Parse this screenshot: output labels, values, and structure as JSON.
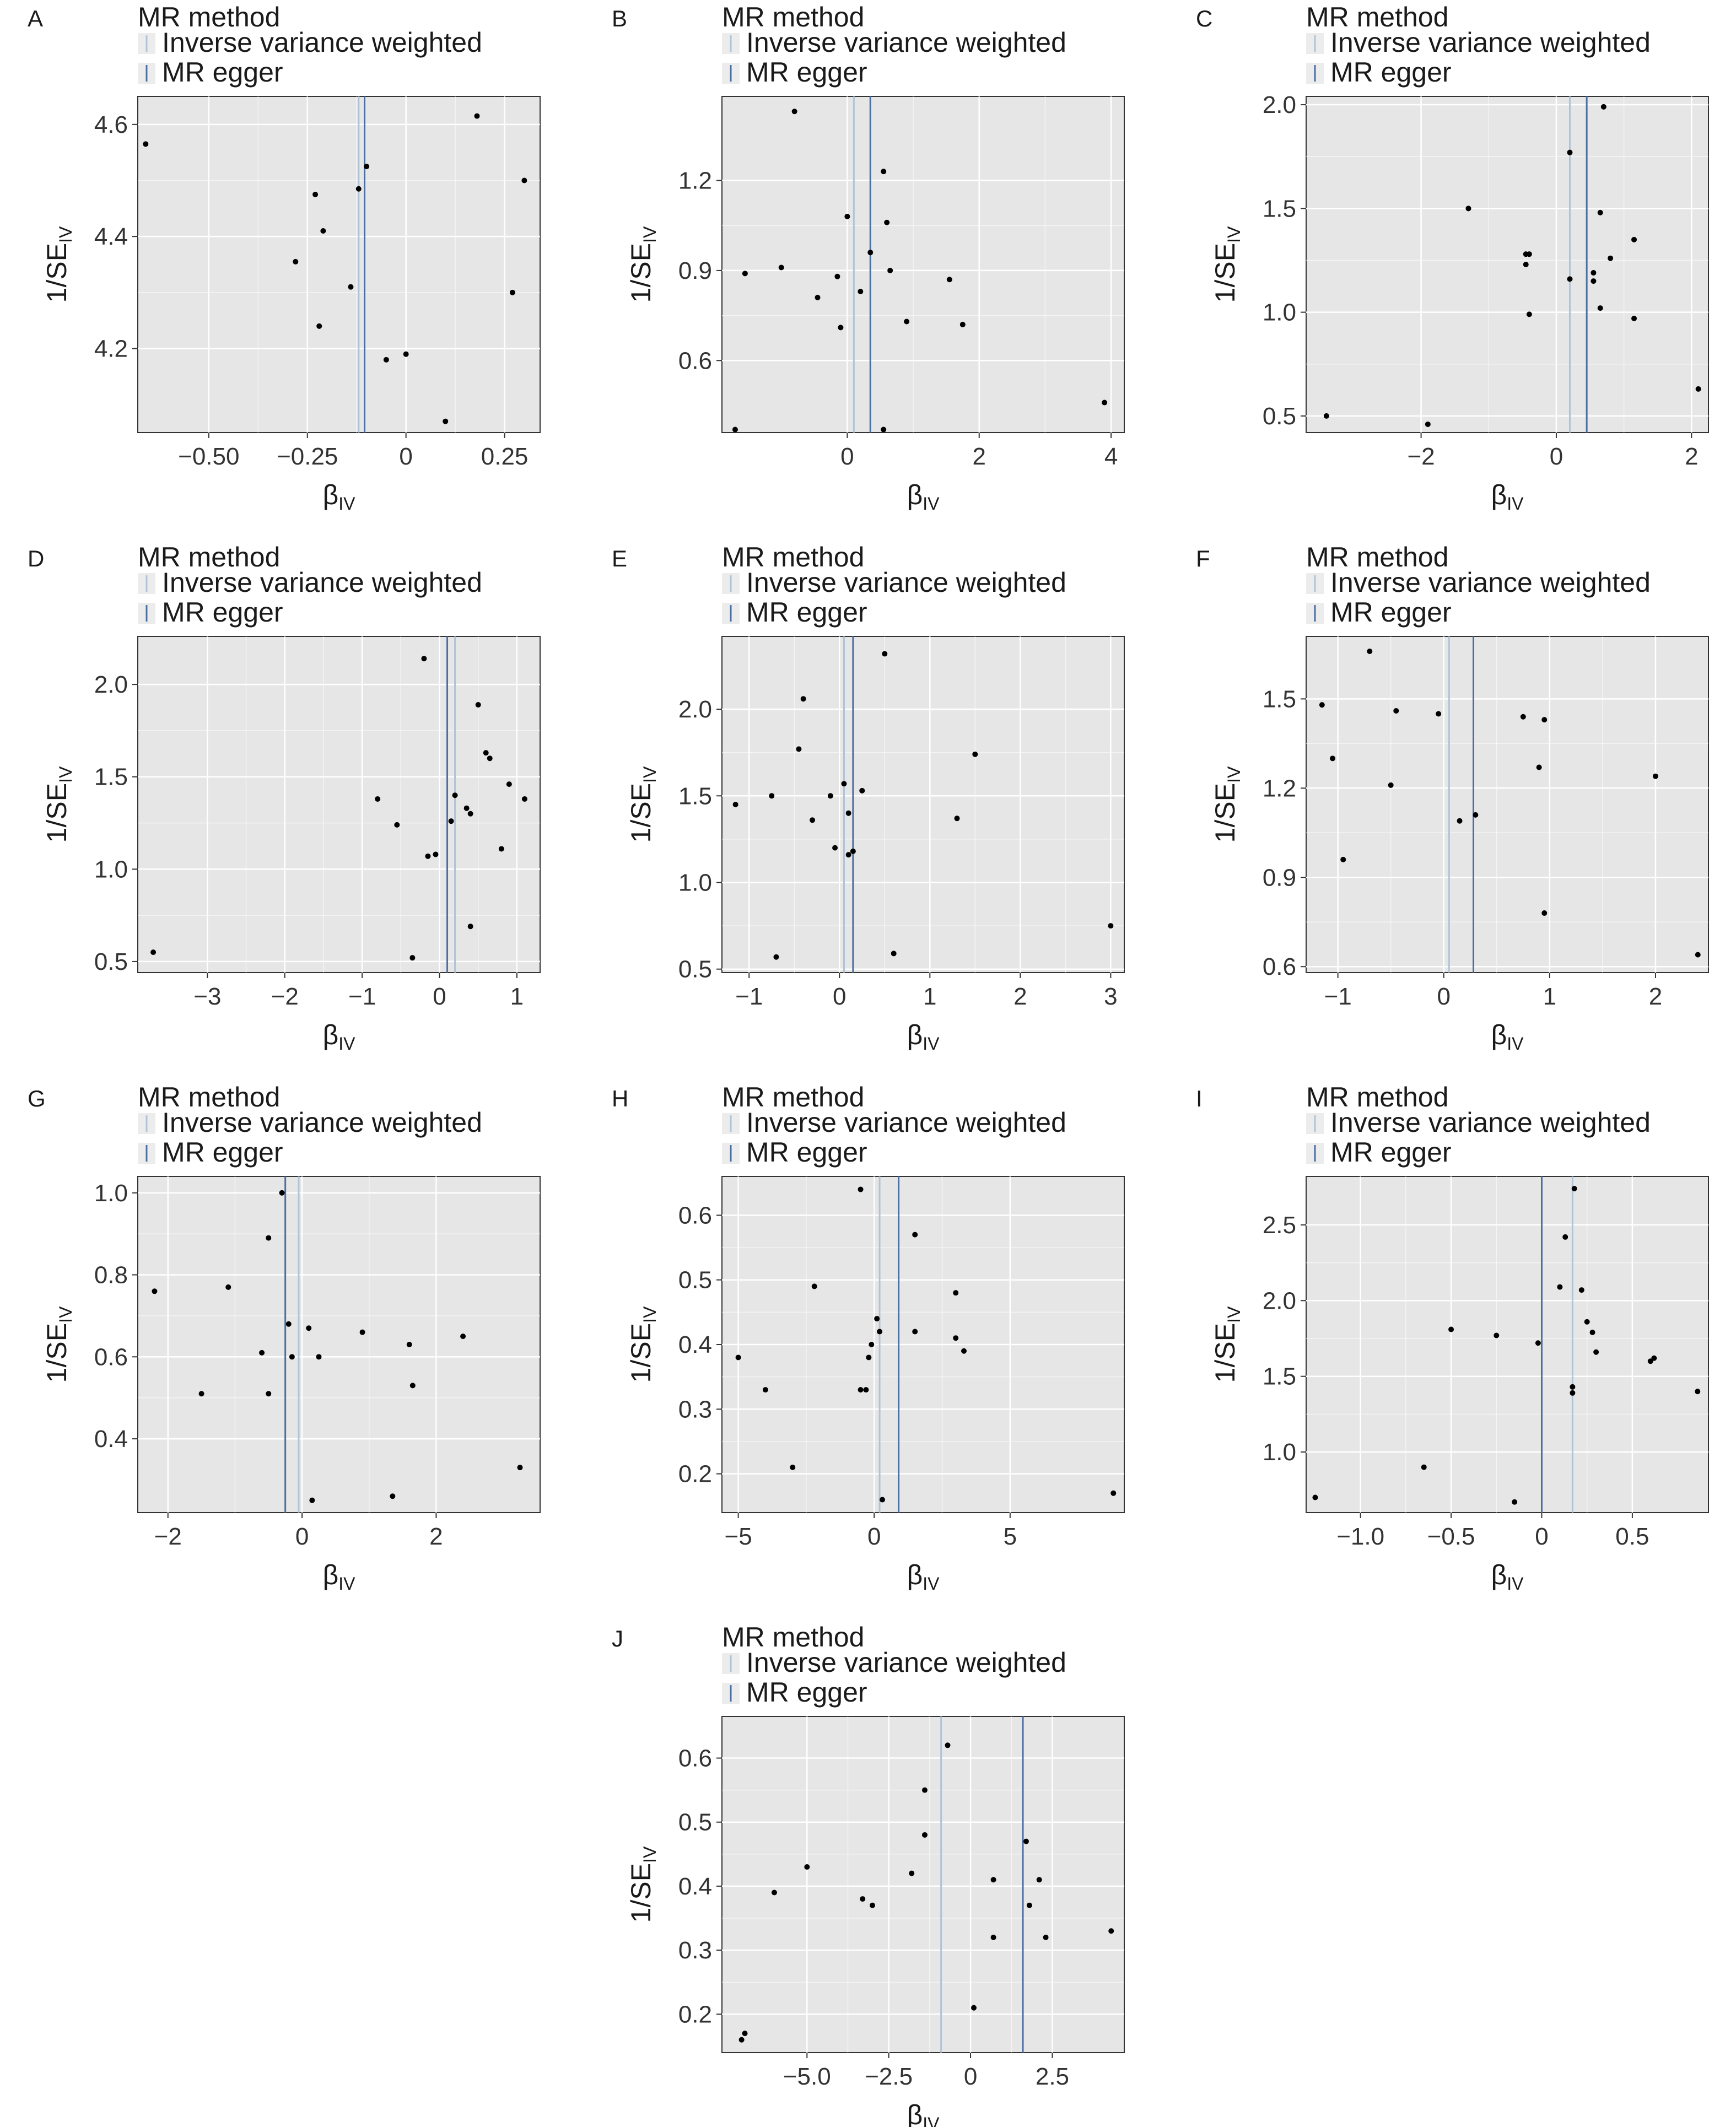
{
  "figure": {
    "legend_title": "MR method",
    "legend_items": [
      "Inverse variance weighted",
      "MR egger"
    ],
    "colors": {
      "panel_bg": "#e6e6e6",
      "grid": "#ffffff",
      "point": "#000000",
      "ivw_line": "#b0c4d8",
      "egger_line": "#4b6fa3",
      "axis_text": "#333333"
    }
  },
  "chart_data": [
    {
      "panel": "A",
      "type": "scatter",
      "xlabel": "β",
      "xlabel_sub": "IV",
      "ylabel": "1/SE",
      "ylabel_sub": "IV",
      "xlim": [
        -0.68,
        0.34
      ],
      "ylim": [
        4.05,
        4.65
      ],
      "xticks": [
        -0.5,
        -0.25,
        0,
        0.25
      ],
      "xtick_labels": [
        "−0.50",
        "−0.25",
        "0",
        "0.25"
      ],
      "yticks": [
        4.2,
        4.4,
        4.6
      ],
      "ytick_labels": [
        "4.2",
        "4.4",
        "4.6"
      ],
      "ivw": -0.12,
      "egger": -0.105,
      "points": [
        [
          -0.66,
          4.565
        ],
        [
          -0.23,
          4.475
        ],
        [
          -0.28,
          4.355
        ],
        [
          -0.21,
          4.41
        ],
        [
          -0.22,
          4.24
        ],
        [
          -0.14,
          4.31
        ],
        [
          -0.12,
          4.485
        ],
        [
          -0.1,
          4.525
        ],
        [
          -0.05,
          4.18
        ],
        [
          0.0,
          4.19
        ],
        [
          0.1,
          4.07
        ],
        [
          0.18,
          4.615
        ],
        [
          0.27,
          4.3
        ],
        [
          0.3,
          4.5
        ]
      ]
    },
    {
      "panel": "B",
      "type": "scatter",
      "xlabel": "β",
      "xlabel_sub": "IV",
      "ylabel": "1/SE",
      "ylabel_sub": "IV",
      "xlim": [
        -1.9,
        4.2
      ],
      "ylim": [
        0.36,
        1.48
      ],
      "xticks": [
        0,
        2,
        4
      ],
      "xtick_labels": [
        "0",
        "2",
        "4"
      ],
      "yticks": [
        0.6,
        0.9,
        1.2
      ],
      "ytick_labels": [
        "0.6",
        "0.9",
        "1.2"
      ],
      "ivw": 0.1,
      "egger": 0.35,
      "points": [
        [
          -1.7,
          0.37
        ],
        [
          -1.55,
          0.89
        ],
        [
          -1.0,
          0.91
        ],
        [
          -0.8,
          1.43
        ],
        [
          -0.45,
          0.81
        ],
        [
          -0.15,
          0.88
        ],
        [
          -0.1,
          0.71
        ],
        [
          0.0,
          1.08
        ],
        [
          0.2,
          0.83
        ],
        [
          0.35,
          0.96
        ],
        [
          0.55,
          0.37
        ],
        [
          0.55,
          1.23
        ],
        [
          0.6,
          1.06
        ],
        [
          0.65,
          0.9
        ],
        [
          0.9,
          0.73
        ],
        [
          1.55,
          0.87
        ],
        [
          1.75,
          0.72
        ],
        [
          3.9,
          0.46
        ]
      ]
    },
    {
      "panel": "C",
      "type": "scatter",
      "xlabel": "β",
      "xlabel_sub": "IV",
      "ylabel": "1/SE",
      "ylabel_sub": "IV",
      "xlim": [
        -3.7,
        2.25
      ],
      "ylim": [
        0.42,
        2.04
      ],
      "xticks": [
        -2,
        0,
        2
      ],
      "xtick_labels": [
        "−2",
        "0",
        "2"
      ],
      "yticks": [
        0.5,
        1.0,
        1.5,
        2.0
      ],
      "ytick_labels": [
        "0.5",
        "1.0",
        "1.5",
        "2.0"
      ],
      "ivw": 0.2,
      "egger": 0.45,
      "points": [
        [
          -3.4,
          0.5
        ],
        [
          -1.9,
          0.46
        ],
        [
          -1.3,
          1.5
        ],
        [
          -0.45,
          1.28
        ],
        [
          -0.45,
          1.23
        ],
        [
          -0.4,
          1.28
        ],
        [
          -0.4,
          0.99
        ],
        [
          0.2,
          1.77
        ],
        [
          0.2,
          1.16
        ],
        [
          0.55,
          1.19
        ],
        [
          0.55,
          1.15
        ],
        [
          0.65,
          1.02
        ],
        [
          0.65,
          1.48
        ],
        [
          0.7,
          1.99
        ],
        [
          0.8,
          1.26
        ],
        [
          1.15,
          0.97
        ],
        [
          1.15,
          1.35
        ],
        [
          2.1,
          0.63
        ]
      ]
    },
    {
      "panel": "D",
      "type": "scatter",
      "xlabel": "β",
      "xlabel_sub": "IV",
      "ylabel": "1/SE",
      "ylabel_sub": "IV",
      "xlim": [
        -3.9,
        1.3
      ],
      "ylim": [
        0.44,
        2.26
      ],
      "xticks": [
        -3,
        -2,
        -1,
        0,
        1
      ],
      "xtick_labels": [
        "−3",
        "−2",
        "−1",
        "0",
        "1"
      ],
      "yticks": [
        0.5,
        1.0,
        1.5,
        2.0
      ],
      "ytick_labels": [
        "0.5",
        "1.0",
        "1.5",
        "2.0"
      ],
      "ivw": 0.2,
      "egger": 0.1,
      "points": [
        [
          -3.7,
          0.55
        ],
        [
          -0.8,
          1.38
        ],
        [
          -0.55,
          1.24
        ],
        [
          -0.35,
          0.52
        ],
        [
          -0.2,
          2.14
        ],
        [
          -0.15,
          1.07
        ],
        [
          -0.05,
          1.08
        ],
        [
          0.15,
          1.26
        ],
        [
          0.2,
          1.4
        ],
        [
          0.35,
          1.33
        ],
        [
          0.4,
          1.3
        ],
        [
          0.4,
          0.69
        ],
        [
          0.5,
          1.89
        ],
        [
          0.6,
          1.63
        ],
        [
          0.65,
          1.6
        ],
        [
          0.8,
          1.11
        ],
        [
          0.9,
          1.46
        ],
        [
          1.1,
          1.38
        ]
      ]
    },
    {
      "panel": "E",
      "type": "scatter",
      "xlabel": "β",
      "xlabel_sub": "IV",
      "ylabel": "1/SE",
      "ylabel_sub": "IV",
      "xlim": [
        -1.3,
        3.15
      ],
      "ylim": [
        0.48,
        2.42
      ],
      "xticks": [
        -1,
        0,
        1,
        2,
        3
      ],
      "xtick_labels": [
        "−1",
        "0",
        "1",
        "2",
        "3"
      ],
      "yticks": [
        0.5,
        1.0,
        1.5,
        2.0
      ],
      "ytick_labels": [
        "0.5",
        "1.0",
        "1.5",
        "2.0"
      ],
      "ivw": 0.05,
      "egger": 0.15,
      "points": [
        [
          -1.15,
          1.45
        ],
        [
          -0.75,
          1.5
        ],
        [
          -0.7,
          0.57
        ],
        [
          -0.45,
          1.77
        ],
        [
          -0.4,
          2.06
        ],
        [
          -0.3,
          1.36
        ],
        [
          -0.1,
          1.5
        ],
        [
          -0.05,
          1.2
        ],
        [
          0.05,
          1.57
        ],
        [
          0.1,
          1.4
        ],
        [
          0.1,
          1.16
        ],
        [
          0.15,
          1.18
        ],
        [
          0.25,
          1.53
        ],
        [
          0.5,
          2.32
        ],
        [
          0.6,
          0.59
        ],
        [
          1.3,
          1.37
        ],
        [
          1.5,
          1.74
        ],
        [
          3.0,
          0.75
        ]
      ]
    },
    {
      "panel": "F",
      "type": "scatter",
      "xlabel": "β",
      "xlabel_sub": "IV",
      "ylabel": "1/SE",
      "ylabel_sub": "IV",
      "xlim": [
        -1.3,
        2.5
      ],
      "ylim": [
        0.58,
        1.71
      ],
      "xticks": [
        -1,
        0,
        1,
        2
      ],
      "xtick_labels": [
        "−1",
        "0",
        "1",
        "2"
      ],
      "yticks": [
        0.6,
        0.9,
        1.2,
        1.5
      ],
      "ytick_labels": [
        "0.6",
        "0.9",
        "1.2",
        "1.5"
      ],
      "ivw": 0.05,
      "egger": 0.28,
      "points": [
        [
          -1.15,
          1.48
        ],
        [
          -1.05,
          1.3
        ],
        [
          -0.95,
          0.96
        ],
        [
          -0.7,
          1.66
        ],
        [
          -0.5,
          1.21
        ],
        [
          -0.45,
          1.46
        ],
        [
          -0.05,
          1.45
        ],
        [
          0.15,
          1.09
        ],
        [
          0.3,
          1.11
        ],
        [
          0.75,
          1.44
        ],
        [
          0.9,
          1.27
        ],
        [
          0.95,
          0.78
        ],
        [
          0.95,
          1.43
        ],
        [
          2.0,
          1.24
        ],
        [
          2.4,
          0.64
        ]
      ]
    },
    {
      "panel": "G",
      "type": "scatter",
      "xlabel": "β",
      "xlabel_sub": "IV",
      "ylabel": "1/SE",
      "ylabel_sub": "IV",
      "xlim": [
        -2.45,
        3.55
      ],
      "ylim": [
        0.22,
        1.04
      ],
      "xticks": [
        -2,
        0,
        2
      ],
      "xtick_labels": [
        "−2",
        "0",
        "2"
      ],
      "yticks": [
        0.4,
        0.6,
        0.8,
        1.0
      ],
      "ytick_labels": [
        "0.4",
        "0.6",
        "0.8",
        "1.0"
      ],
      "ivw": -0.05,
      "egger": -0.25,
      "points": [
        [
          -2.2,
          0.76
        ],
        [
          -1.5,
          0.51
        ],
        [
          -1.1,
          0.77
        ],
        [
          -0.6,
          0.61
        ],
        [
          -0.5,
          0.89
        ],
        [
          -0.5,
          0.51
        ],
        [
          -0.3,
          1.0
        ],
        [
          -0.2,
          0.68
        ],
        [
          -0.15,
          0.6
        ],
        [
          0.1,
          0.67
        ],
        [
          0.15,
          0.25
        ],
        [
          0.25,
          0.6
        ],
        [
          0.9,
          0.66
        ],
        [
          1.35,
          0.26
        ],
        [
          1.6,
          0.63
        ],
        [
          1.65,
          0.53
        ],
        [
          2.4,
          0.65
        ],
        [
          3.25,
          0.33
        ]
      ]
    },
    {
      "panel": "H",
      "type": "scatter",
      "xlabel": "β",
      "xlabel_sub": "IV",
      "ylabel": "1/SE",
      "ylabel_sub": "IV",
      "xlim": [
        -5.6,
        9.2
      ],
      "ylim": [
        0.14,
        0.66
      ],
      "xticks": [
        -5,
        0,
        5
      ],
      "xtick_labels": [
        "−5",
        "0",
        "5"
      ],
      "yticks": [
        0.2,
        0.3,
        0.4,
        0.5,
        0.6
      ],
      "ytick_labels": [
        "0.2",
        "0.3",
        "0.4",
        "0.5",
        "0.6"
      ],
      "ivw": 0.2,
      "egger": 0.9,
      "points": [
        [
          -5.0,
          0.38
        ],
        [
          -4.0,
          0.33
        ],
        [
          -3.0,
          0.21
        ],
        [
          -2.2,
          0.49
        ],
        [
          -0.5,
          0.64
        ],
        [
          -0.5,
          0.33
        ],
        [
          -0.3,
          0.33
        ],
        [
          -0.2,
          0.38
        ],
        [
          -0.1,
          0.4
        ],
        [
          0.1,
          0.44
        ],
        [
          0.2,
          0.42
        ],
        [
          0.3,
          0.16
        ],
        [
          1.5,
          0.57
        ],
        [
          1.5,
          0.42
        ],
        [
          3.0,
          0.48
        ],
        [
          3.0,
          0.41
        ],
        [
          3.3,
          0.39
        ],
        [
          8.8,
          0.17
        ]
      ]
    },
    {
      "panel": "I",
      "type": "scatter",
      "xlabel": "β",
      "xlabel_sub": "IV",
      "ylabel": "1/SE",
      "ylabel_sub": "IV",
      "xlim": [
        -1.3,
        0.92
      ],
      "ylim": [
        0.6,
        2.82
      ],
      "xticks": [
        -1.0,
        -0.5,
        0,
        0.5
      ],
      "xtick_labels": [
        "−1.0",
        "−0.5",
        "0",
        "0.5"
      ],
      "yticks": [
        1.0,
        1.5,
        2.0,
        2.5
      ],
      "ytick_labels": [
        "1.0",
        "1.5",
        "2.0",
        "2.5"
      ],
      "ivw": 0.17,
      "egger": 0.0,
      "points": [
        [
          -1.25,
          0.7
        ],
        [
          -0.65,
          0.9
        ],
        [
          -0.5,
          1.81
        ],
        [
          -0.25,
          1.77
        ],
        [
          -0.15,
          0.67
        ],
        [
          -0.02,
          1.72
        ],
        [
          0.1,
          2.09
        ],
        [
          0.13,
          2.42
        ],
        [
          0.17,
          1.43
        ],
        [
          0.17,
          1.39
        ],
        [
          0.18,
          2.74
        ],
        [
          0.22,
          2.07
        ],
        [
          0.25,
          1.86
        ],
        [
          0.28,
          1.79
        ],
        [
          0.3,
          1.66
        ],
        [
          0.6,
          1.6
        ],
        [
          0.62,
          1.62
        ],
        [
          0.86,
          1.4
        ]
      ]
    },
    {
      "panel": "J",
      "type": "scatter",
      "xlabel": "β",
      "xlabel_sub": "IV",
      "ylabel": "1/SE",
      "ylabel_sub": "IV",
      "xlim": [
        -7.6,
        4.7
      ],
      "ylim": [
        0.14,
        0.665
      ],
      "xticks": [
        -5.0,
        -2.5,
        0,
        2.5
      ],
      "xtick_labels": [
        "−5.0",
        "−2.5",
        "0",
        "2.5"
      ],
      "yticks": [
        0.2,
        0.3,
        0.4,
        0.5,
        0.6
      ],
      "ytick_labels": [
        "0.2",
        "0.3",
        "0.4",
        "0.5",
        "0.6"
      ],
      "ivw": -0.9,
      "egger": 1.6,
      "points": [
        [
          -7.0,
          0.16
        ],
        [
          -6.9,
          0.17
        ],
        [
          -6.0,
          0.39
        ],
        [
          -5.0,
          0.43
        ],
        [
          -3.3,
          0.38
        ],
        [
          -3.0,
          0.37
        ],
        [
          -1.8,
          0.42
        ],
        [
          -1.4,
          0.55
        ],
        [
          -1.4,
          0.48
        ],
        [
          -0.7,
          0.62
        ],
        [
          0.1,
          0.21
        ],
        [
          0.7,
          0.41
        ],
        [
          0.7,
          0.32
        ],
        [
          1.7,
          0.47
        ],
        [
          1.8,
          0.37
        ],
        [
          2.1,
          0.41
        ],
        [
          2.3,
          0.32
        ],
        [
          4.3,
          0.33
        ]
      ]
    }
  ]
}
